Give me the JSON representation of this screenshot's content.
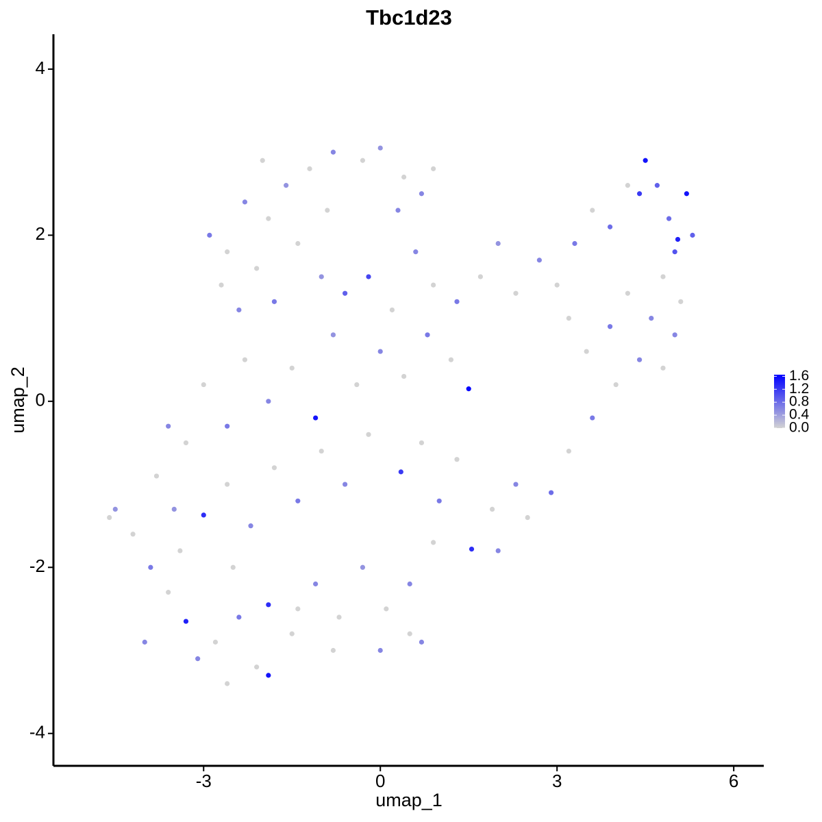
{
  "chart_data": {
    "type": "scatter",
    "title": "Tbc1d23",
    "x_label": "umap_1",
    "y_label": "umap_2",
    "x": [
      -2.9,
      -2.6,
      -2.3,
      -2.0,
      -1.6,
      -1.2,
      -0.8,
      -0.3,
      0.0,
      0.4,
      0.7,
      0.9,
      -2.7,
      -2.4,
      -2.1,
      -1.8,
      -1.4,
      -1.0,
      -0.6,
      -0.2,
      0.2,
      0.6,
      0.9,
      1.3,
      1.7,
      2.0,
      2.3,
      2.7,
      3.0,
      3.3,
      3.6,
      3.9,
      4.2,
      4.4,
      4.5,
      4.7,
      4.9,
      5.0,
      5.2,
      5.3,
      5.05,
      4.8,
      5.1,
      4.6,
      4.2,
      3.9,
      3.5,
      3.2,
      5.0,
      4.8,
      4.4,
      4.0,
      3.6,
      3.2,
      2.9,
      2.5,
      2.0,
      1.5,
      1.2,
      0.8,
      0.4,
      0.0,
      -0.4,
      -0.8,
      -1.1,
      -1.5,
      -1.9,
      -2.3,
      -2.6,
      -3.0,
      -3.3,
      -3.6,
      -3.8,
      -3.5,
      -3.0,
      -2.6,
      -2.2,
      -1.8,
      -1.4,
      -1.0,
      -0.6,
      -0.2,
      0.35,
      0.7,
      1.0,
      1.3,
      1.55,
      1.9,
      2.3,
      0.9,
      0.5,
      0.1,
      -0.3,
      -0.7,
      -1.1,
      -1.5,
      -1.9,
      -2.1,
      -1.9,
      -2.4,
      -2.8,
      -3.1,
      -3.3,
      -3.6,
      -3.9,
      -4.2,
      -4.5,
      -4.6,
      -4.0,
      -2.6,
      0.0,
      0.5,
      0.7,
      -0.8,
      -1.4,
      -2.5,
      -3.4,
      -0.9,
      0.3,
      -1.9
    ],
    "values": [
      2.0,
      1.8,
      2.4,
      2.9,
      2.6,
      2.8,
      3.0,
      2.9,
      3.05,
      2.7,
      2.5,
      2.8,
      1.4,
      1.1,
      1.6,
      1.2,
      1.9,
      1.5,
      1.3,
      1.5,
      1.1,
      1.8,
      1.4,
      1.2,
      1.5,
      1.9,
      1.3,
      1.7,
      1.4,
      1.9,
      2.3,
      2.1,
      2.6,
      2.5,
      2.9,
      2.6,
      2.2,
      1.8,
      2.5,
      2.0,
      1.95,
      1.5,
      1.2,
      1.0,
      1.3,
      0.9,
      0.6,
      1.0,
      0.8,
      0.4,
      0.5,
      0.2,
      -0.2,
      -0.6,
      -1.1,
      -1.4,
      -1.8,
      0.15,
      0.5,
      0.8,
      0.3,
      0.6,
      0.2,
      0.8,
      -0.2,
      0.4,
      0.0,
      0.5,
      -0.3,
      0.2,
      -0.5,
      -0.3,
      -0.9,
      -1.3,
      -1.37,
      -1.0,
      -1.5,
      -0.8,
      -1.2,
      -0.6,
      -1.0,
      -0.4,
      -0.85,
      -0.5,
      -1.2,
      -0.7,
      -1.78,
      -1.3,
      -1.0,
      -1.7,
      -2.2,
      -2.5,
      -2.0,
      -2.6,
      -2.2,
      -2.8,
      -2.45,
      -3.2,
      -3.3,
      -2.6,
      -2.9,
      -3.1,
      -2.65,
      -2.3,
      -2.0,
      -1.6,
      -1.3,
      -1.4,
      -2.9,
      -3.4,
      -3.0,
      -2.8,
      -2.9,
      -3.0,
      -2.5,
      -2.0,
      -1.8,
      2.3,
      2.3,
      2.2
    ],
    "expression": [
      0.7,
      0,
      0.6,
      0,
      0.5,
      0,
      0.6,
      0,
      0.5,
      0,
      0.6,
      0,
      0,
      0.6,
      0,
      0.7,
      0,
      0.5,
      0.9,
      1.1,
      0,
      0.6,
      0,
      0.7,
      0,
      0.5,
      0,
      0.6,
      0,
      0.7,
      0,
      0.8,
      0,
      1.2,
      1.5,
      0.9,
      0.8,
      1.0,
      1.5,
      0.9,
      1.4,
      0,
      0,
      0.6,
      0,
      0.7,
      0,
      0,
      0.6,
      0,
      0.6,
      0,
      0.7,
      0,
      0.8,
      0,
      0.6,
      1.6,
      0,
      0.7,
      0,
      0.6,
      0,
      0.5,
      1.5,
      0,
      0.6,
      0,
      0.7,
      0,
      0,
      0.6,
      0,
      0.5,
      1.3,
      0,
      0.6,
      0,
      0.7,
      0,
      0.6,
      0,
      1.2,
      0,
      0.7,
      0,
      1.3,
      0,
      0.6,
      0,
      0.6,
      0,
      0.5,
      0,
      0.6,
      0,
      1.3,
      0,
      1.5,
      0.7,
      0,
      0.6,
      1.4,
      0,
      0.7,
      0,
      0.5,
      0,
      0.6,
      0,
      0.6,
      0,
      0.6,
      0,
      0,
      0,
      0,
      0,
      0.6,
      0
    ],
    "colors": [
      "#d3d3d3",
      "#0000ff"
    ],
    "color_lim": [
      0,
      1.65
    ],
    "color_ticks": [
      {
        "value": 0,
        "label": "0.0"
      },
      {
        "value": 0.4,
        "label": "0.4"
      },
      {
        "value": 0.8,
        "label": "0.8"
      },
      {
        "value": 1.2,
        "label": "1.2"
      },
      {
        "value": 1.6,
        "label": "1.6"
      }
    ],
    "xlim": [
      -5.55,
      6.51
    ],
    "ylim": [
      -4.39,
      4.42
    ],
    "xticks": [
      -3,
      0,
      3,
      6
    ],
    "yticks": [
      -4,
      -2,
      0,
      2,
      4
    ]
  }
}
